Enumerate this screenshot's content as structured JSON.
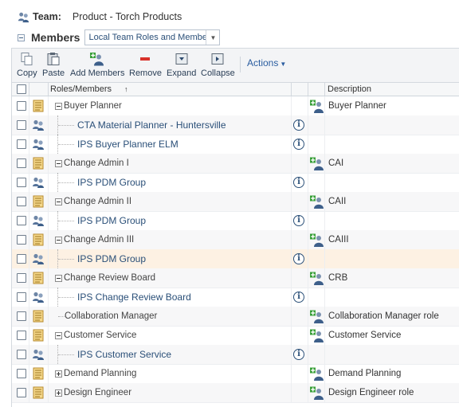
{
  "team": {
    "label": "Team:",
    "value": "Product - Torch Products"
  },
  "members": {
    "title": "Members",
    "view_select": "Local Team Roles and Members"
  },
  "toolbar": {
    "copy": "Copy",
    "paste": "Paste",
    "add_members": "Add Members",
    "remove": "Remove",
    "expand": "Expand",
    "collapse": "Collapse",
    "actions": "Actions"
  },
  "columns": {
    "roles_members": "Roles/Members",
    "description": "Description"
  },
  "rows": [
    {
      "type": "role",
      "name": "Buyer Planner",
      "expander": "minus",
      "description": "Buyer Planner"
    },
    {
      "type": "member",
      "name": "CTA Material Planner - Huntersville"
    },
    {
      "type": "member",
      "name": "IPS Buyer Planner ELM"
    },
    {
      "type": "role",
      "name": "Change Admin I",
      "expander": "minus",
      "description": "CAI"
    },
    {
      "type": "member",
      "name": "IPS PDM Group"
    },
    {
      "type": "role",
      "name": "Change Admin II",
      "expander": "minus",
      "description": "CAII"
    },
    {
      "type": "member",
      "name": "IPS PDM Group"
    },
    {
      "type": "role",
      "name": "Change Admin III",
      "expander": "minus",
      "description": "CAIII"
    },
    {
      "type": "member",
      "name": "IPS PDM Group",
      "highlight": true
    },
    {
      "type": "role",
      "name": "Change Review Board",
      "expander": "minus",
      "description": "CRB"
    },
    {
      "type": "member",
      "name": "IPS Change Review Board"
    },
    {
      "type": "role",
      "name": "Collaboration Manager",
      "expander": "none",
      "description": "Collaboration Manager role"
    },
    {
      "type": "role",
      "name": "Customer Service",
      "expander": "minus",
      "description": "Customer Service"
    },
    {
      "type": "member",
      "name": "IPS Customer Service"
    },
    {
      "type": "role",
      "name": "Demand Planning",
      "expander": "plus",
      "description": "Demand Planning"
    },
    {
      "type": "role",
      "name": "Design Engineer",
      "expander": "plus",
      "description": "Design Engineer role"
    }
  ],
  "icons": {
    "team": "team-icon",
    "role": "role-icon",
    "member": "group-icon",
    "info": "info-icon",
    "description": "add-role-icon"
  },
  "colors": {
    "link": "#2a4f78",
    "highlight": "#fdf1e3",
    "accent": "#2a5da0"
  }
}
